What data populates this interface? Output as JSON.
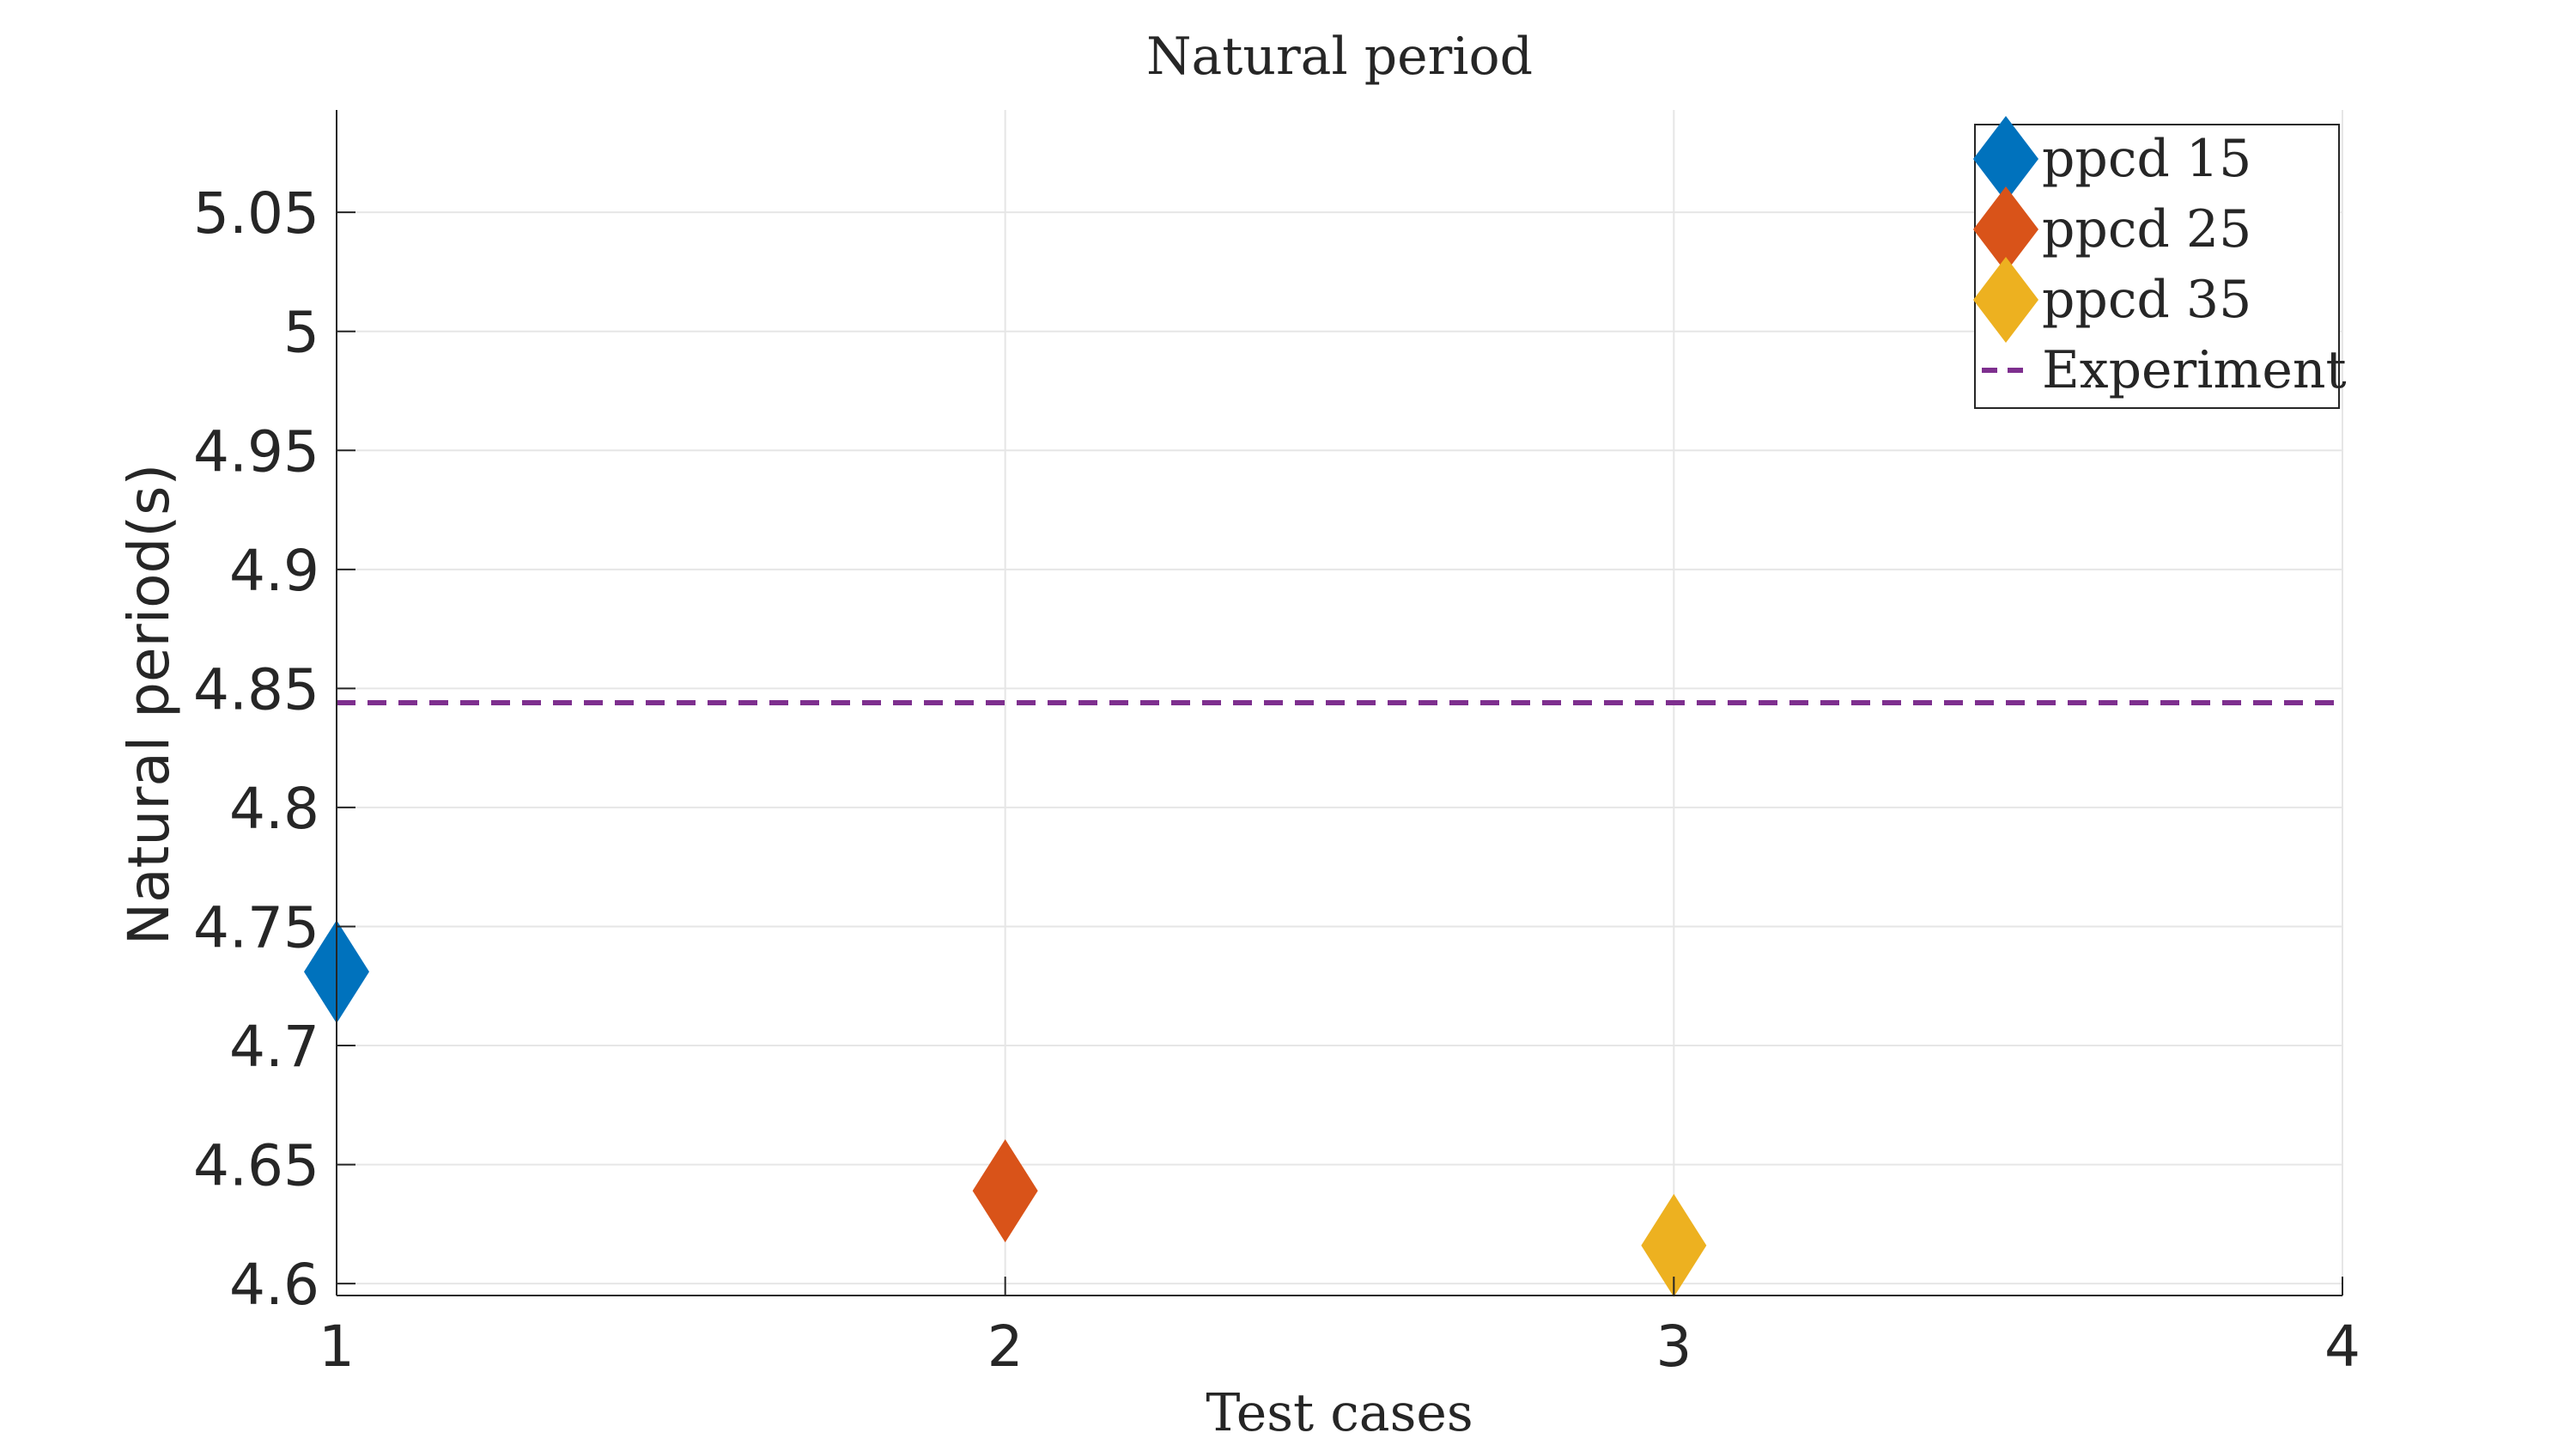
{
  "chart_data": {
    "type": "scatter",
    "title": "Natural period",
    "xlabel": "Test cases",
    "ylabel": "Natural period(s)",
    "xlim": [
      1,
      4
    ],
    "ylim": [
      4.595,
      5.093
    ],
    "xticks": [
      1,
      2,
      3,
      4
    ],
    "xtick_labels": [
      "1",
      "2",
      "3",
      "4"
    ],
    "yticks": [
      4.6,
      4.65,
      4.7,
      4.75,
      4.8,
      4.85,
      4.9,
      4.95,
      5.0,
      5.05
    ],
    "ytick_labels": [
      "4.6",
      "4.65",
      "4.7",
      "4.75",
      "4.8",
      "4.85",
      "4.9",
      "4.95",
      "5",
      "5.05"
    ],
    "grid": true,
    "legend_position": "top-right",
    "series": [
      {
        "name": "ppcd 15",
        "type": "scatter",
        "marker": "diamond",
        "color": "#0072BD",
        "x": [
          1
        ],
        "y": [
          4.731
        ]
      },
      {
        "name": "ppcd 25",
        "type": "scatter",
        "marker": "diamond",
        "color": "#D95319",
        "x": [
          2
        ],
        "y": [
          4.639
        ]
      },
      {
        "name": "ppcd 35",
        "type": "scatter",
        "marker": "diamond",
        "color": "#EDB120",
        "x": [
          3
        ],
        "y": [
          4.616
        ]
      },
      {
        "name": "Experiment",
        "type": "line",
        "style": "dashed",
        "color": "#7E2F8E",
        "x": [
          1,
          4
        ],
        "y": [
          4.844,
          4.844
        ]
      }
    ]
  }
}
